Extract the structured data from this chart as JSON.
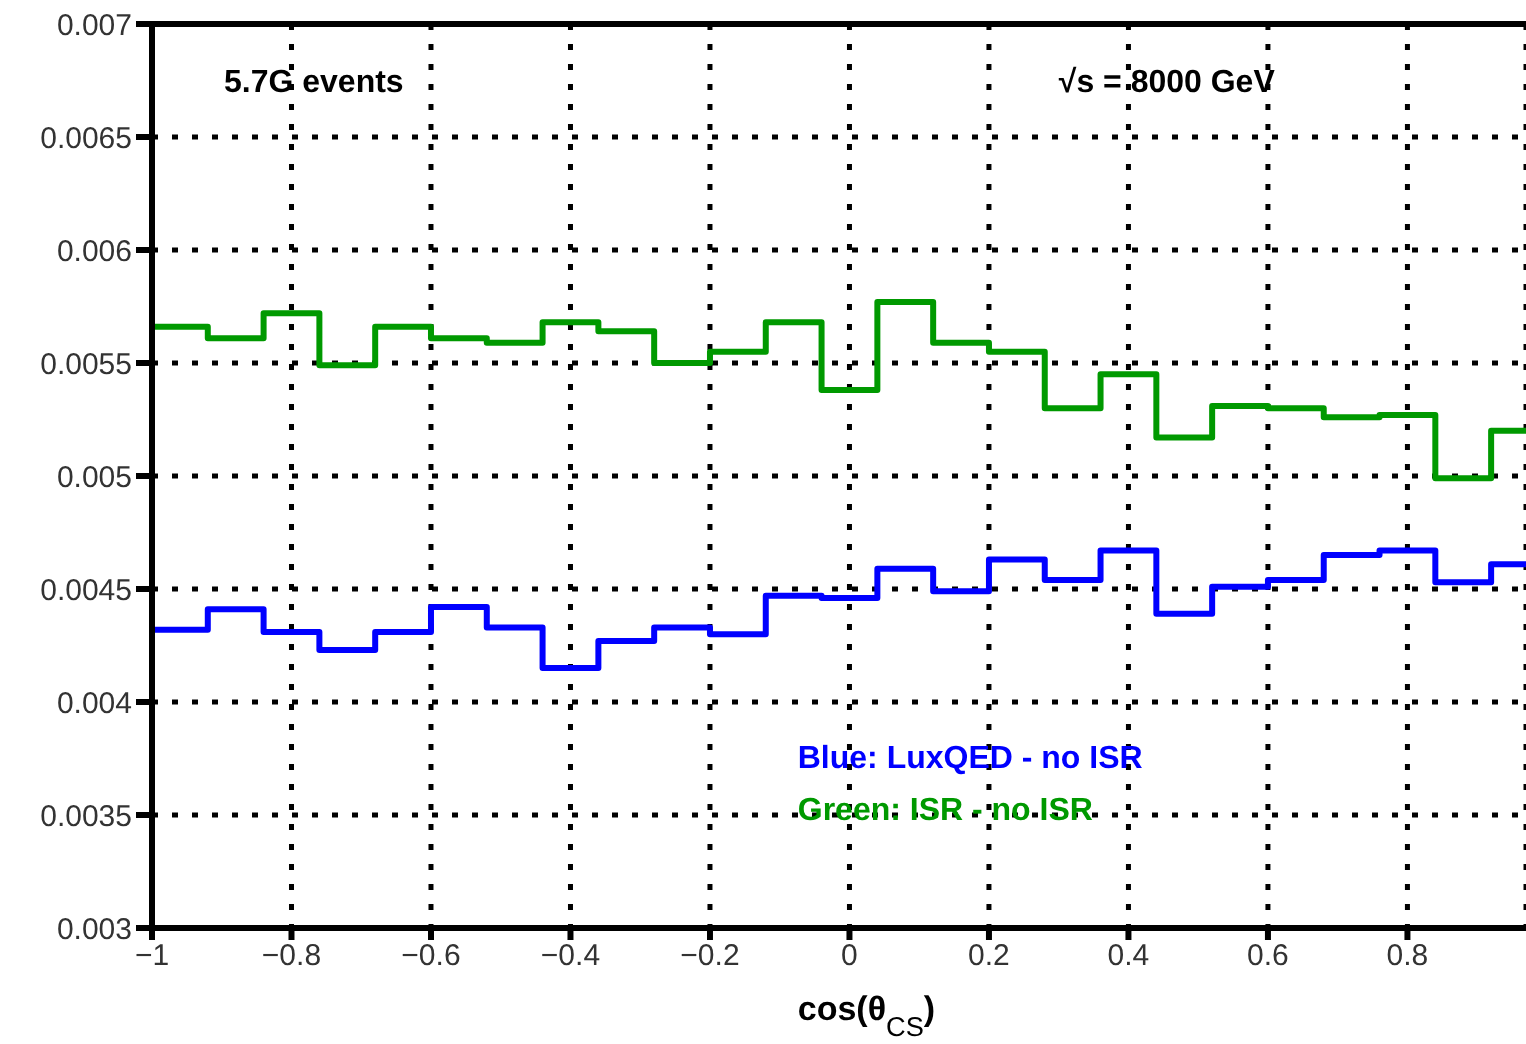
{
  "chart_data": {
    "type": "histogram",
    "xlabel": "cos(θ$_{CS}$)",
    "bins": [
      -1,
      -0.92,
      -0.84,
      -0.76,
      -0.68,
      -0.6,
      -0.52,
      -0.44,
      -0.36,
      -0.28,
      -0.2,
      -0.12,
      -0.04,
      0.04,
      0.12,
      0.2,
      0.28,
      0.36,
      0.44,
      0.52,
      0.6,
      0.68,
      0.76,
      0.84,
      0.92,
      1
    ],
    "series": [
      {
        "name": "Blue: LuxQED - no ISR",
        "color": "#0000ff",
        "values": [
          0.00432,
          0.00441,
          0.00431,
          0.00423,
          0.00431,
          0.00442,
          0.00433,
          0.00415,
          0.00427,
          0.00433,
          0.0043,
          0.00447,
          0.00446,
          0.00459,
          0.00449,
          0.00463,
          0.00454,
          0.00467,
          0.00439,
          0.00451,
          0.00454,
          0.00465,
          0.00467,
          0.00453,
          0.00461
        ]
      },
      {
        "name": "Green: ISR - no ISR",
        "color": "#009900",
        "values": [
          0.00566,
          0.00561,
          0.00572,
          0.00549,
          0.00566,
          0.00561,
          0.00559,
          0.00568,
          0.00564,
          0.0055,
          0.00555,
          0.00568,
          0.00538,
          0.00577,
          0.00559,
          0.00555,
          0.0053,
          0.00545,
          0.00517,
          0.00531,
          0.0053,
          0.00526,
          0.00527,
          0.00499,
          0.0052
        ]
      }
    ],
    "annotations": [
      "5.7G events",
      "√s = 8000 GeV"
    ],
    "xlim": [
      -1,
      0.97
    ],
    "xticks": [
      -1,
      -0.8,
      -0.6,
      -0.4,
      -0.2,
      0,
      0.2,
      0.4,
      0.6,
      0.8
    ],
    "ylim": [
      0.003,
      0.007
    ],
    "yticks": [
      0.003,
      0.0035,
      0.004,
      0.0045,
      0.005,
      0.0055,
      0.006,
      0.0065,
      0.007
    ],
    "grid": true,
    "legend": "bottom right"
  }
}
